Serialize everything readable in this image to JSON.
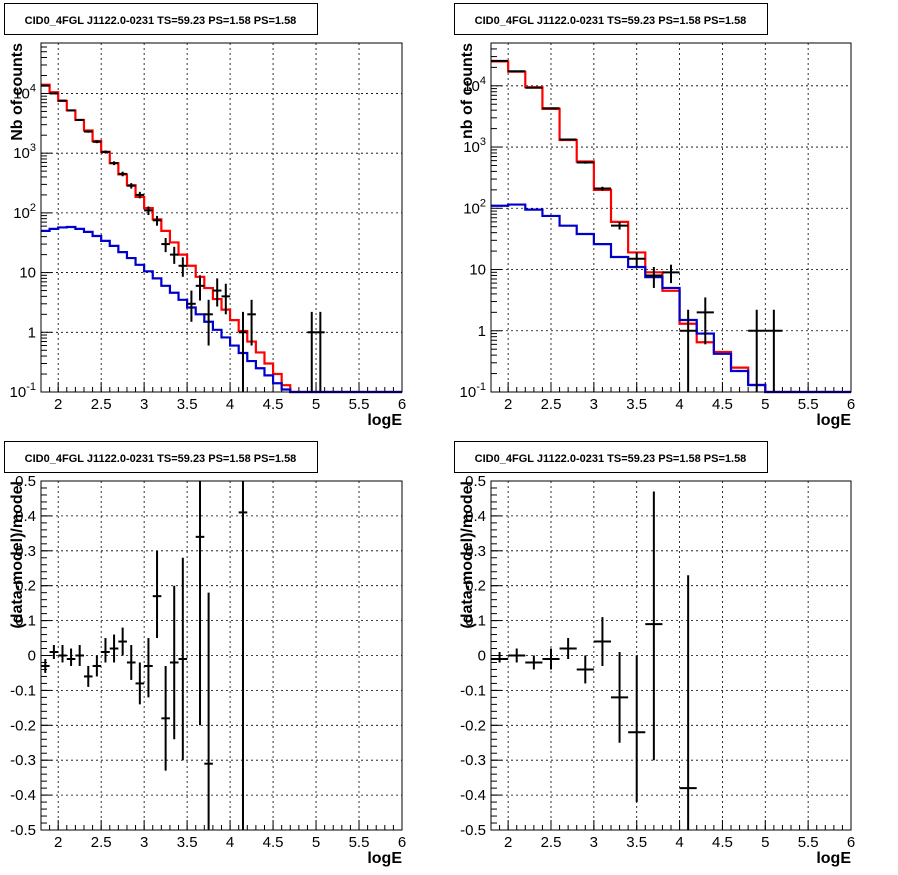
{
  "chart_data": [
    {
      "type": "line",
      "title": "CID0_4FGL J1122.0-0231 TS=59.23 PS=1.58 PS=1.58",
      "xlabel": "logE",
      "ylabel": "Nb of counts",
      "ylog": true,
      "xlim": [
        1.8,
        6.0
      ],
      "ylim": [
        0.1,
        70000
      ],
      "grid": true,
      "xticks": [
        "2",
        "2.5",
        "3",
        "3.5",
        "4",
        "4.5",
        "5",
        "5.5",
        "6"
      ],
      "yticks": [
        "10^-1",
        "1",
        "10",
        "10^2",
        "10^3",
        "10^4"
      ],
      "series": [
        {
          "color": "#ff0000",
          "bins": [
            1.8,
            1.9,
            2.0,
            2.1,
            2.2,
            2.3,
            2.4,
            2.5,
            2.6,
            2.7,
            2.8,
            2.9,
            3.0,
            3.1,
            3.2,
            3.3,
            3.4,
            3.5,
            3.6,
            3.7,
            3.8,
            3.9,
            4.0,
            4.1,
            4.2,
            4.3,
            4.4,
            4.5,
            4.6,
            4.7,
            4.8,
            4.9,
            5.0,
            5.1,
            5.2,
            5.3,
            5.4,
            5.5,
            5.6,
            5.7,
            5.8,
            5.9,
            6.0
          ],
          "values": [
            14000,
            10500,
            7500,
            5200,
            3600,
            2400,
            1600,
            1050,
            680,
            440,
            290,
            185,
            120,
            78,
            50,
            32,
            20,
            13,
            8.5,
            5.5,
            3.6,
            2.4,
            1.6,
            1.05,
            0.7,
            0.46,
            0.3,
            0.2,
            0.13,
            0.1,
            0.1,
            0.1,
            0.1,
            0.1,
            0.1,
            0.1,
            0.1,
            0.1,
            0.1,
            0.1,
            0.1,
            0.1
          ]
        },
        {
          "color": "#0000cc",
          "bins": [
            1.8,
            1.9,
            2.0,
            2.1,
            2.2,
            2.3,
            2.4,
            2.5,
            2.6,
            2.7,
            2.8,
            2.9,
            3.0,
            3.1,
            3.2,
            3.3,
            3.4,
            3.5,
            3.6,
            3.7,
            3.8,
            3.9,
            4.0,
            4.1,
            4.2,
            4.3,
            4.4,
            4.5,
            4.6,
            4.7,
            4.8,
            4.9,
            5.0,
            5.1,
            5.2,
            5.3,
            5.4,
            5.5,
            5.6,
            5.7,
            5.8,
            5.9,
            6.0
          ],
          "values": [
            50,
            54,
            57,
            58,
            54,
            48,
            41,
            34,
            28,
            22,
            17.5,
            13.5,
            10.5,
            8,
            6,
            4.6,
            3.5,
            2.6,
            2,
            1.5,
            1.1,
            0.82,
            0.6,
            0.45,
            0.33,
            0.25,
            0.19,
            0.14,
            0.11,
            0.1,
            0.1,
            0.1,
            0.1,
            0.1,
            0.1,
            0.1,
            0.1,
            0.1,
            0.1,
            0.1,
            0.1,
            0.1
          ]
        }
      ],
      "points": [
        {
          "x": 1.85,
          "y": 13500,
          "xerr": 0.05,
          "ylo": 13250,
          "yhi": 13750
        },
        {
          "x": 1.95,
          "y": 10000,
          "xerr": 0.05,
          "ylo": 9800,
          "yhi": 10200
        },
        {
          "x": 2.05,
          "y": 7600,
          "xerr": 0.05,
          "ylo": 7400,
          "yhi": 7800
        },
        {
          "x": 2.15,
          "y": 5200,
          "xerr": 0.05,
          "ylo": 5050,
          "yhi": 5350
        },
        {
          "x": 2.25,
          "y": 3600,
          "xerr": 0.05,
          "ylo": 3480,
          "yhi": 3720
        },
        {
          "x": 2.35,
          "y": 2300,
          "xerr": 0.05,
          "ylo": 2200,
          "yhi": 2400
        },
        {
          "x": 2.45,
          "y": 1550,
          "xerr": 0.05,
          "ylo": 1470,
          "yhi": 1630
        },
        {
          "x": 2.55,
          "y": 1050,
          "xerr": 0.05,
          "ylo": 990,
          "yhi": 1110
        },
        {
          "x": 2.65,
          "y": 680,
          "xerr": 0.05,
          "ylo": 630,
          "yhi": 730
        },
        {
          "x": 2.75,
          "y": 450,
          "xerr": 0.05,
          "ylo": 410,
          "yhi": 490
        },
        {
          "x": 2.85,
          "y": 285,
          "xerr": 0.05,
          "ylo": 255,
          "yhi": 315
        },
        {
          "x": 2.95,
          "y": 200,
          "xerr": 0.05,
          "ylo": 175,
          "yhi": 225
        },
        {
          "x": 3.05,
          "y": 110,
          "xerr": 0.05,
          "ylo": 92,
          "yhi": 128
        },
        {
          "x": 3.15,
          "y": 75,
          "xerr": 0.05,
          "ylo": 61,
          "yhi": 89
        },
        {
          "x": 3.25,
          "y": 30,
          "xerr": 0.05,
          "ylo": 22,
          "yhi": 38
        },
        {
          "x": 3.35,
          "y": 20,
          "xerr": 0.05,
          "ylo": 14,
          "yhi": 27
        },
        {
          "x": 3.45,
          "y": 13,
          "xerr": 0.05,
          "ylo": 8.5,
          "yhi": 18
        },
        {
          "x": 3.55,
          "y": 3,
          "xerr": 0.05,
          "ylo": 1.5,
          "yhi": 5
        },
        {
          "x": 3.65,
          "y": 6,
          "xerr": 0.05,
          "ylo": 3.4,
          "yhi": 9
        },
        {
          "x": 3.75,
          "y": 2,
          "xerr": 0.05,
          "ylo": 0.6,
          "yhi": 3.5
        },
        {
          "x": 3.85,
          "y": 5,
          "xerr": 0.05,
          "ylo": 2.7,
          "yhi": 8
        },
        {
          "x": 3.95,
          "y": 4,
          "xerr": 0.05,
          "ylo": 2,
          "yhi": 6.5
        },
        {
          "x": 4.15,
          "y": 1,
          "xerr": 0.05,
          "ylo": 0.1,
          "yhi": 2.2
        },
        {
          "x": 4.25,
          "y": 2,
          "xerr": 0.05,
          "ylo": 0.6,
          "yhi": 3.5
        },
        {
          "x": 4.95,
          "y": 1,
          "xerr": 0.05,
          "ylo": 0.1,
          "yhi": 2.2
        },
        {
          "x": 5.05,
          "y": 1,
          "xerr": 0.05,
          "ylo": 0.1,
          "yhi": 2.2
        }
      ]
    },
    {
      "type": "line",
      "title": "CID0_4FGL J1122.0-0231 TS=59.23 PS=1.58 PS=1.58",
      "xlabel": "logE",
      "ylabel": "nb of counts",
      "ylog": true,
      "xlim": [
        1.8,
        6.0
      ],
      "ylim": [
        0.1,
        50000
      ],
      "grid": true,
      "xticks": [
        "2",
        "2.5",
        "3",
        "3.5",
        "4",
        "4.5",
        "5",
        "5.5",
        "6"
      ],
      "yticks": [
        "10^-1",
        "1",
        "10",
        "10^2",
        "10^3",
        "10^4"
      ],
      "series": [
        {
          "color": "#ff0000",
          "bins": [
            1.8,
            2.0,
            2.2,
            2.4,
            2.6,
            2.8,
            3.0,
            3.2,
            3.4,
            3.6,
            3.8,
            4.0,
            4.2,
            4.4,
            4.6,
            4.8,
            5.0,
            5.2,
            5.4,
            5.6,
            5.8,
            6.0
          ],
          "values": [
            25000,
            17000,
            9500,
            4200,
            1300,
            580,
            200,
            60,
            19,
            9,
            4.5,
            1.3,
            0.65,
            0.45,
            0.25,
            0.13,
            0.1,
            0.1,
            0.1,
            0.1,
            0.1
          ]
        },
        {
          "color": "#0000cc",
          "bins": [
            1.8,
            2.0,
            2.2,
            2.4,
            2.6,
            2.8,
            3.0,
            3.2,
            3.4,
            3.6,
            3.8,
            4.0,
            4.2,
            4.4,
            4.6,
            4.8,
            5.0,
            5.2,
            5.4,
            5.6,
            5.8,
            6.0
          ],
          "values": [
            110,
            115,
            95,
            75,
            52,
            38,
            26,
            16,
            11,
            7.5,
            5,
            1.5,
            0.9,
            0.42,
            0.22,
            0.13,
            0.1,
            0.1,
            0.1,
            0.1,
            0.1
          ]
        }
      ],
      "points": [
        {
          "x": 1.9,
          "y": 25500,
          "xerr": 0.1,
          "ylo": 25250,
          "yhi": 25750
        },
        {
          "x": 2.1,
          "y": 17300,
          "xerr": 0.1,
          "ylo": 17100,
          "yhi": 17500
        },
        {
          "x": 2.3,
          "y": 9300,
          "xerr": 0.1,
          "ylo": 9150,
          "yhi": 9450
        },
        {
          "x": 2.5,
          "y": 4300,
          "xerr": 0.1,
          "ylo": 4200,
          "yhi": 4400
        },
        {
          "x": 2.7,
          "y": 1330,
          "xerr": 0.1,
          "ylo": 1290,
          "yhi": 1370
        },
        {
          "x": 2.9,
          "y": 560,
          "xerr": 0.1,
          "ylo": 535,
          "yhi": 585
        },
        {
          "x": 3.1,
          "y": 210,
          "xerr": 0.1,
          "ylo": 195,
          "yhi": 225
        },
        {
          "x": 3.3,
          "y": 52,
          "xerr": 0.1,
          "ylo": 45,
          "yhi": 60
        },
        {
          "x": 3.5,
          "y": 15,
          "xerr": 0.1,
          "ylo": 11,
          "yhi": 19
        },
        {
          "x": 3.7,
          "y": 8,
          "xerr": 0.1,
          "ylo": 5,
          "yhi": 11
        },
        {
          "x": 3.9,
          "y": 9,
          "xerr": 0.1,
          "ylo": 6,
          "yhi": 12
        },
        {
          "x": 4.1,
          "y": 1,
          "xerr": 0.1,
          "ylo": 0.1,
          "yhi": 2.2
        },
        {
          "x": 4.3,
          "y": 2,
          "xerr": 0.1,
          "ylo": 0.6,
          "yhi": 3.5
        },
        {
          "x": 4.9,
          "y": 1,
          "xerr": 0.1,
          "ylo": 0.1,
          "yhi": 2.2
        },
        {
          "x": 5.1,
          "y": 1,
          "xerr": 0.1,
          "ylo": 0.1,
          "yhi": 2.2
        }
      ]
    },
    {
      "type": "scatter",
      "title": "CID0_4FGL J1122.0-0231 TS=59.23 PS=1.58 PS=1.58",
      "xlabel": "logE",
      "ylabel": "(data-model)/model",
      "ylog": false,
      "xlim": [
        1.8,
        6.0
      ],
      "ylim": [
        -0.5,
        0.5
      ],
      "grid": true,
      "xticks": [
        "2",
        "2.5",
        "3",
        "3.5",
        "4",
        "4.5",
        "5",
        "5.5",
        "6"
      ],
      "yticks": [
        "-0.5",
        "-0.4",
        "-0.3",
        "-0.2",
        "-0.1",
        "0",
        "0.1",
        "0.2",
        "0.3",
        "0.4",
        "0.5"
      ],
      "points": [
        {
          "x": 1.85,
          "y": -0.03,
          "xerr": 0.05,
          "ylo": -0.05,
          "yhi": -0.01
        },
        {
          "x": 1.95,
          "y": 0.01,
          "xerr": 0.05,
          "ylo": -0.01,
          "yhi": 0.03
        },
        {
          "x": 2.05,
          "y": 0.0,
          "xerr": 0.05,
          "ylo": -0.02,
          "yhi": 0.03
        },
        {
          "x": 2.15,
          "y": -0.01,
          "xerr": 0.05,
          "ylo": -0.03,
          "yhi": 0.02
        },
        {
          "x": 2.25,
          "y": 0.0,
          "xerr": 0.05,
          "ylo": -0.03,
          "yhi": 0.03
        },
        {
          "x": 2.35,
          "y": -0.06,
          "xerr": 0.05,
          "ylo": -0.09,
          "yhi": -0.03
        },
        {
          "x": 2.45,
          "y": -0.03,
          "xerr": 0.05,
          "ylo": -0.06,
          "yhi": 0.0
        },
        {
          "x": 2.55,
          "y": 0.01,
          "xerr": 0.05,
          "ylo": -0.02,
          "yhi": 0.05
        },
        {
          "x": 2.65,
          "y": 0.02,
          "xerr": 0.05,
          "ylo": -0.02,
          "yhi": 0.06
        },
        {
          "x": 2.75,
          "y": 0.04,
          "xerr": 0.05,
          "ylo": 0.0,
          "yhi": 0.08
        },
        {
          "x": 2.85,
          "y": -0.02,
          "xerr": 0.05,
          "ylo": -0.07,
          "yhi": 0.03
        },
        {
          "x": 2.95,
          "y": -0.08,
          "xerr": 0.05,
          "ylo": -0.14,
          "yhi": -0.02
        },
        {
          "x": 3.05,
          "y": -0.03,
          "xerr": 0.05,
          "ylo": -0.12,
          "yhi": 0.05
        },
        {
          "x": 3.15,
          "y": 0.17,
          "xerr": 0.05,
          "ylo": 0.05,
          "yhi": 0.3
        },
        {
          "x": 3.25,
          "y": -0.18,
          "xerr": 0.05,
          "ylo": -0.33,
          "yhi": -0.03
        },
        {
          "x": 3.35,
          "y": -0.02,
          "xerr": 0.05,
          "ylo": -0.24,
          "yhi": 0.2
        },
        {
          "x": 3.45,
          "y": -0.01,
          "xerr": 0.05,
          "ylo": -0.3,
          "yhi": 0.28
        },
        {
          "x": 3.65,
          "y": 0.34,
          "xerr": 0.05,
          "ylo": -0.2,
          "yhi": 0.5
        },
        {
          "x": 3.75,
          "y": -0.31,
          "xerr": 0.05,
          "ylo": -0.5,
          "yhi": 0.18
        },
        {
          "x": 4.15,
          "y": 0.41,
          "xerr": 0.05,
          "ylo": -0.5,
          "yhi": 0.5
        }
      ]
    },
    {
      "type": "scatter",
      "title": "CID0_4FGL J1122.0-0231 TS=59.23 PS=1.58 PS=1.58",
      "xlabel": "logE",
      "ylabel": "(data-model)/model",
      "ylog": false,
      "xlim": [
        1.8,
        6.0
      ],
      "ylim": [
        -0.5,
        0.5
      ],
      "grid": true,
      "xticks": [
        "2",
        "2.5",
        "3",
        "3.5",
        "4",
        "4.5",
        "5",
        "5.5",
        "6"
      ],
      "yticks": [
        "-0.5",
        "-0.4",
        "-0.3",
        "-0.2",
        "-0.1",
        "0",
        "0.1",
        "0.2",
        "0.3",
        "0.4",
        "0.5"
      ],
      "points": [
        {
          "x": 1.9,
          "y": -0.01,
          "xerr": 0.1,
          "ylo": -0.02,
          "yhi": 0.01
        },
        {
          "x": 2.1,
          "y": 0.0,
          "xerr": 0.1,
          "ylo": -0.02,
          "yhi": 0.02
        },
        {
          "x": 2.3,
          "y": -0.02,
          "xerr": 0.1,
          "ylo": -0.04,
          "yhi": 0.0
        },
        {
          "x": 2.5,
          "y": -0.01,
          "xerr": 0.1,
          "ylo": -0.04,
          "yhi": 0.02
        },
        {
          "x": 2.7,
          "y": 0.02,
          "xerr": 0.1,
          "ylo": -0.01,
          "yhi": 0.05
        },
        {
          "x": 2.9,
          "y": -0.04,
          "xerr": 0.1,
          "ylo": -0.08,
          "yhi": 0.0
        },
        {
          "x": 3.1,
          "y": 0.04,
          "xerr": 0.1,
          "ylo": -0.03,
          "yhi": 0.11
        },
        {
          "x": 3.3,
          "y": -0.12,
          "xerr": 0.1,
          "ylo": -0.25,
          "yhi": 0.01
        },
        {
          "x": 3.5,
          "y": -0.22,
          "xerr": 0.1,
          "ylo": -0.42,
          "yhi": 0.0
        },
        {
          "x": 3.7,
          "y": 0.09,
          "xerr": 0.1,
          "ylo": -0.3,
          "yhi": 0.47
        },
        {
          "x": 4.1,
          "y": -0.38,
          "xerr": 0.1,
          "ylo": -0.5,
          "yhi": 0.23
        }
      ]
    }
  ]
}
